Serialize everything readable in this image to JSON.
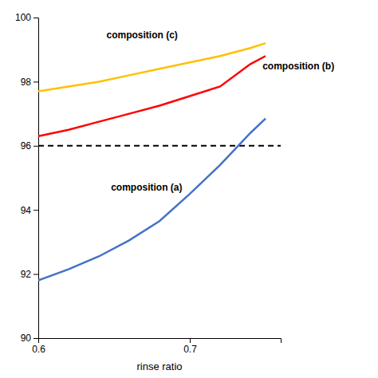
{
  "chart_data": {
    "type": "line",
    "x": [
      0.6,
      0.62,
      0.64,
      0.66,
      0.68,
      0.7,
      0.72,
      0.74,
      0.75
    ],
    "series": [
      {
        "color": "#4472C4",
        "values": [
          91.8,
          92.15,
          92.55,
          93.05,
          93.65,
          94.5,
          95.4,
          96.4,
          96.85
        ]
      },
      {
        "color": "#FF0000",
        "values": [
          96.3,
          96.5,
          96.75,
          97.0,
          97.25,
          97.55,
          97.85,
          98.55,
          98.8
        ]
      },
      {
        "color": "#FFC000",
        "values": [
          97.7,
          97.85,
          98.0,
          98.2,
          98.4,
          98.6,
          98.8,
          99.05,
          99.2
        ]
      }
    ],
    "xlim": [
      0.6,
      0.76
    ],
    "ylim": [
      90,
      100
    ],
    "xticks": [
      0.6,
      0.7
    ],
    "yticks": [
      90,
      92,
      94,
      96,
      98,
      100
    ],
    "xlabel": "rinse ratio",
    "hline": 96,
    "annotations": [
      {
        "text": "composition (a)",
        "x": 0.648,
        "y": 94.7
      },
      {
        "text": "composition (b)",
        "x": 0.748,
        "y": 98.5
      },
      {
        "text": "composition (c)",
        "x": 0.645,
        "y": 99.45
      }
    ]
  }
}
